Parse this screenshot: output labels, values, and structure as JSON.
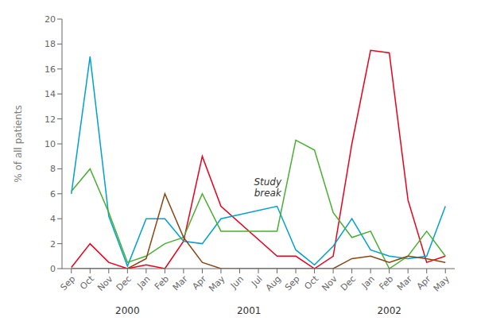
{
  "chart_data": {
    "type": "line",
    "ylabel": "% of all patients",
    "ylim": [
      0,
      20
    ],
    "yticks": [
      0,
      2,
      4,
      6,
      8,
      10,
      12,
      14,
      16,
      18,
      20
    ],
    "categories": [
      "Sep",
      "Oct",
      "Nov",
      "Dec",
      "Jan",
      "Feb",
      "Mar",
      "Apr",
      "May",
      "Jun",
      "Jul",
      "Aug",
      "Sep",
      "Oct",
      "Nov",
      "Dec",
      "Jan",
      "Feb",
      "Mar",
      "Apr",
      "May"
    ],
    "series": [
      {
        "color": "#e8001c",
        "values": [
          0.1,
          2.0,
          0.5,
          0.0,
          0.3,
          0.0,
          2.2,
          9.0,
          5.0,
          null,
          null,
          1.0,
          1.0,
          0.0,
          1.0,
          10.0,
          17.5,
          17.3,
          5.5,
          0.5,
          1.0
        ]
      },
      {
        "color": "#00a0d2",
        "values": [
          6.0,
          17.0,
          4.2,
          0.2,
          4.0,
          4.0,
          2.2,
          2.0,
          4.0,
          null,
          null,
          5.0,
          1.5,
          0.3,
          1.8,
          4.0,
          1.5,
          1.0,
          0.8,
          1.0,
          5.0
        ]
      },
      {
        "color": "#4aae32",
        "values": [
          6.2,
          8.0,
          4.5,
          0.5,
          1.0,
          2.0,
          2.5,
          6.0,
          3.0,
          null,
          null,
          3.0,
          10.3,
          9.5,
          4.5,
          2.5,
          3.0,
          0.0,
          1.0,
          3.0,
          1.0
        ]
      },
      {
        "color": "#8B4513",
        "values": [
          0.0,
          0.0,
          0.0,
          0.0,
          0.8,
          6.0,
          2.5,
          0.5,
          0.0,
          null,
          null,
          0.0,
          0.0,
          0.0,
          0.0,
          0.8,
          1.0,
          0.5,
          1.0,
          0.8,
          0.5
        ]
      }
    ],
    "annotations": [
      {
        "text": "Study\nbreak",
        "x": 10.5,
        "y": 6.5
      }
    ],
    "x_group_labels": [
      {
        "text": "2000",
        "x": 3
      },
      {
        "text": "2001",
        "x": 9.5
      },
      {
        "text": "2002",
        "x": 17
      }
    ]
  }
}
